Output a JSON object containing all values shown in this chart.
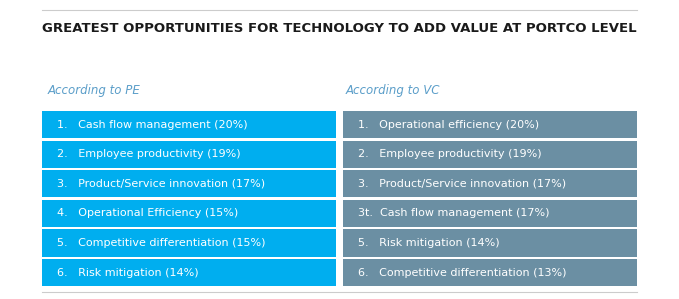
{
  "title": "GREATEST OPPORTUNITIES FOR TECHNOLOGY TO ADD VALUE AT PORTCO LEVEL",
  "col1_header": "According to PE",
  "col2_header": "According to VC",
  "pe_rows": [
    "1.   Cash flow management (20%)",
    "2.   Employee productivity (19%)",
    "3.   Product/Service innovation (17%)",
    "4.   Operational Efficiency (15%)",
    "5.   Competitive differentiation (15%)",
    "6.   Risk mitigation (14%)"
  ],
  "vc_rows": [
    "1.   Operational efficiency (20%)",
    "2.   Employee productivity (19%)",
    "3.   Product/Service innovation (17%)",
    "3t.  Cash flow management (17%)",
    "5.   Risk mitigation (14%)",
    "6.   Competitive differentiation (13%)"
  ],
  "pe_color": "#00AEEF",
  "vc_color": "#6B8FA3",
  "title_color": "#1a1a1a",
  "text_color": "#ffffff",
  "subheader_color": "#5B9EC9",
  "bg_color": "#ffffff",
  "border_color": "#cccccc",
  "title_fontsize": 9.5,
  "header_fontsize": 8.5,
  "row_fontsize": 8.0
}
